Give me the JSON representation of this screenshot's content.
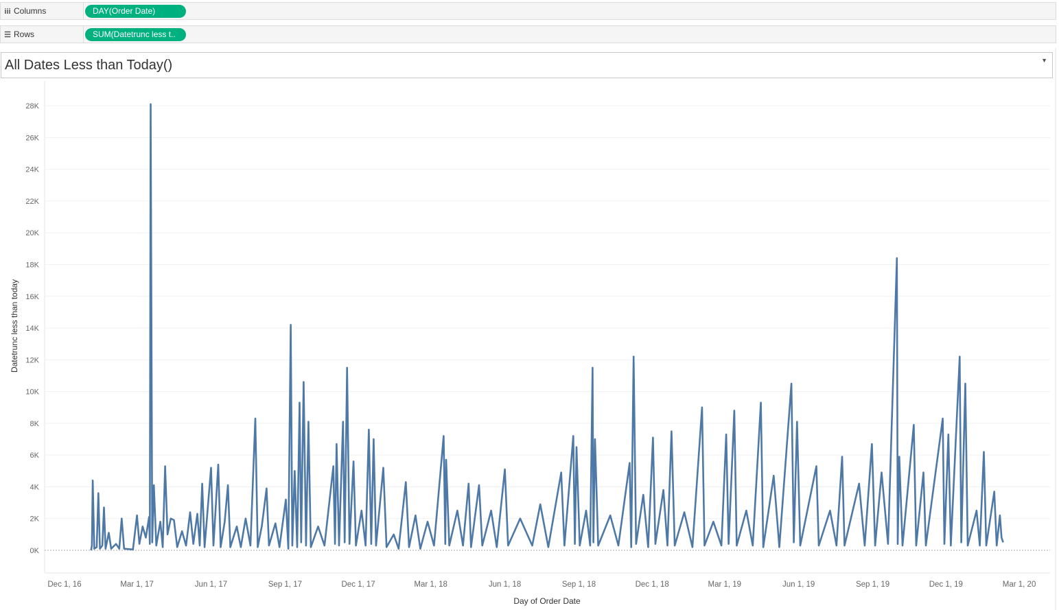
{
  "shelves": {
    "columns_label": "Columns",
    "columns_icon": "columns-icon",
    "columns_pill": "DAY(Order Date)",
    "rows_label": "Rows",
    "rows_icon": "rows-icon",
    "rows_pill": "SUM(Datetrunc less t.."
  },
  "sheet": {
    "title": "All Dates Less than Today()"
  },
  "colors": {
    "pill": "#00b180",
    "line": "#4e79a7"
  },
  "chart_data": {
    "type": "line",
    "title": "All Dates Less than Today()",
    "xlabel": "Day of Order Date",
    "ylabel": "Datetrunc less than today",
    "xlim": [
      "2016-11-06",
      "2020-03-20"
    ],
    "ylim": [
      -1500,
      29000
    ],
    "grid": true,
    "xticks": [
      {
        "d": "2016-12-01",
        "label": "Dec 1, 16"
      },
      {
        "d": "2017-03-01",
        "label": "Mar 1, 17"
      },
      {
        "d": "2017-06-01",
        "label": "Jun 1, 17"
      },
      {
        "d": "2017-09-01",
        "label": "Sep 1, 17"
      },
      {
        "d": "2017-12-01",
        "label": "Dec 1, 17"
      },
      {
        "d": "2018-03-01",
        "label": "Mar 1, 18"
      },
      {
        "d": "2018-06-01",
        "label": "Jun 1, 18"
      },
      {
        "d": "2018-09-01",
        "label": "Sep 1, 18"
      },
      {
        "d": "2018-12-01",
        "label": "Dec 1, 18"
      },
      {
        "d": "2019-03-01",
        "label": "Mar 1, 19"
      },
      {
        "d": "2019-06-01",
        "label": "Jun 1, 19"
      },
      {
        "d": "2019-09-01",
        "label": "Sep 1, 19"
      },
      {
        "d": "2019-12-01",
        "label": "Dec 1, 19"
      },
      {
        "d": "2020-03-01",
        "label": "Mar 1, 20"
      }
    ],
    "yticks": [
      {
        "v": 0,
        "label": "0K"
      },
      {
        "v": 2000,
        "label": "2K"
      },
      {
        "v": 4000,
        "label": "4K"
      },
      {
        "v": 6000,
        "label": "6K"
      },
      {
        "v": 8000,
        "label": "8K"
      },
      {
        "v": 10000,
        "label": "10K"
      },
      {
        "v": 12000,
        "label": "12K"
      },
      {
        "v": 14000,
        "label": "14K"
      },
      {
        "v": 16000,
        "label": "16K"
      },
      {
        "v": 18000,
        "label": "18K"
      },
      {
        "v": 20000,
        "label": "20K"
      },
      {
        "v": 22000,
        "label": "22K"
      },
      {
        "v": 24000,
        "label": "24K"
      },
      {
        "v": 26000,
        "label": "26K"
      },
      {
        "v": 28000,
        "label": "28K"
      }
    ],
    "points": [
      [
        "2017-01-03",
        0
      ],
      [
        "2017-01-04",
        300
      ],
      [
        "2017-01-05",
        4400
      ],
      [
        "2017-01-07",
        100
      ],
      [
        "2017-01-10",
        200
      ],
      [
        "2017-01-12",
        3600
      ],
      [
        "2017-01-14",
        100
      ],
      [
        "2017-01-17",
        300
      ],
      [
        "2017-01-19",
        2700
      ],
      [
        "2017-01-21",
        100
      ],
      [
        "2017-01-25",
        1100
      ],
      [
        "2017-01-28",
        100
      ],
      [
        "2017-02-03",
        400
      ],
      [
        "2017-02-07",
        100
      ],
      [
        "2017-02-10",
        2000
      ],
      [
        "2017-02-13",
        100
      ],
      [
        "2017-02-24",
        50
      ],
      [
        "2017-03-01",
        2200
      ],
      [
        "2017-03-04",
        400
      ],
      [
        "2017-03-08",
        1500
      ],
      [
        "2017-03-12",
        800
      ],
      [
        "2017-03-16",
        2100
      ],
      [
        "2017-03-17",
        400
      ],
      [
        "2017-03-18",
        28100
      ],
      [
        "2017-03-20",
        500
      ],
      [
        "2017-03-22",
        4100
      ],
      [
        "2017-03-25",
        300
      ],
      [
        "2017-03-30",
        1800
      ],
      [
        "2017-04-02",
        200
      ],
      [
        "2017-04-05",
        5300
      ],
      [
        "2017-04-08",
        1000
      ],
      [
        "2017-04-12",
        2000
      ],
      [
        "2017-04-16",
        1900
      ],
      [
        "2017-04-20",
        200
      ],
      [
        "2017-04-26",
        1200
      ],
      [
        "2017-05-01",
        300
      ],
      [
        "2017-05-06",
        2400
      ],
      [
        "2017-05-10",
        400
      ],
      [
        "2017-05-15",
        2300
      ],
      [
        "2017-05-18",
        300
      ],
      [
        "2017-05-21",
        4200
      ],
      [
        "2017-05-24",
        200
      ],
      [
        "2017-06-01",
        5200
      ],
      [
        "2017-06-04",
        300
      ],
      [
        "2017-06-10",
        5400
      ],
      [
        "2017-06-13",
        200
      ],
      [
        "2017-06-18",
        1800
      ],
      [
        "2017-06-22",
        4100
      ],
      [
        "2017-06-25",
        200
      ],
      [
        "2017-07-03",
        1500
      ],
      [
        "2017-07-08",
        200
      ],
      [
        "2017-07-14",
        2000
      ],
      [
        "2017-07-20",
        300
      ],
      [
        "2017-07-26",
        8300
      ],
      [
        "2017-07-29",
        200
      ],
      [
        "2017-08-03",
        1500
      ],
      [
        "2017-08-09",
        3900
      ],
      [
        "2017-08-12",
        300
      ],
      [
        "2017-08-20",
        1700
      ],
      [
        "2017-08-25",
        200
      ],
      [
        "2017-09-02",
        3200
      ],
      [
        "2017-09-05",
        100
      ],
      [
        "2017-09-08",
        14200
      ],
      [
        "2017-09-10",
        300
      ],
      [
        "2017-09-13",
        5000
      ],
      [
        "2017-09-16",
        200
      ],
      [
        "2017-09-19",
        9300
      ],
      [
        "2017-09-21",
        500
      ],
      [
        "2017-09-24",
        10600
      ],
      [
        "2017-09-27",
        300
      ],
      [
        "2017-09-30",
        8100
      ],
      [
        "2017-10-03",
        200
      ],
      [
        "2017-10-12",
        1500
      ],
      [
        "2017-10-20",
        300
      ],
      [
        "2017-10-31",
        5300
      ],
      [
        "2017-11-02",
        400
      ],
      [
        "2017-11-04",
        6700
      ],
      [
        "2017-11-07",
        300
      ],
      [
        "2017-11-12",
        8100
      ],
      [
        "2017-11-14",
        500
      ],
      [
        "2017-11-17",
        11500
      ],
      [
        "2017-11-20",
        400
      ],
      [
        "2017-11-25",
        5600
      ],
      [
        "2017-11-28",
        300
      ],
      [
        "2017-12-05",
        2500
      ],
      [
        "2017-12-10",
        300
      ],
      [
        "2017-12-14",
        7600
      ],
      [
        "2017-12-17",
        400
      ],
      [
        "2017-12-20",
        7000
      ],
      [
        "2017-12-23",
        300
      ],
      [
        "2018-01-01",
        5200
      ],
      [
        "2018-01-05",
        200
      ],
      [
        "2018-01-14",
        1000
      ],
      [
        "2018-01-20",
        100
      ],
      [
        "2018-01-29",
        4300
      ],
      [
        "2018-02-02",
        200
      ],
      [
        "2018-02-10",
        2200
      ],
      [
        "2018-02-16",
        100
      ],
      [
        "2018-02-25",
        1800
      ],
      [
        "2018-03-05",
        300
      ],
      [
        "2018-03-17",
        7200
      ],
      [
        "2018-03-19",
        400
      ],
      [
        "2018-03-20",
        5700
      ],
      [
        "2018-03-24",
        300
      ],
      [
        "2018-04-03",
        2500
      ],
      [
        "2018-04-10",
        300
      ],
      [
        "2018-04-17",
        4200
      ],
      [
        "2018-04-20",
        200
      ],
      [
        "2018-04-30",
        4100
      ],
      [
        "2018-05-04",
        300
      ],
      [
        "2018-05-15",
        2500
      ],
      [
        "2018-05-22",
        200
      ],
      [
        "2018-06-01",
        5100
      ],
      [
        "2018-06-05",
        300
      ],
      [
        "2018-06-20",
        2000
      ],
      [
        "2018-07-05",
        300
      ],
      [
        "2018-07-15",
        2900
      ],
      [
        "2018-07-25",
        200
      ],
      [
        "2018-08-10",
        4900
      ],
      [
        "2018-08-14",
        300
      ],
      [
        "2018-08-25",
        7200
      ],
      [
        "2018-08-27",
        400
      ],
      [
        "2018-08-29",
        6500
      ],
      [
        "2018-09-02",
        300
      ],
      [
        "2018-09-10",
        2500
      ],
      [
        "2018-09-15",
        300
      ],
      [
        "2018-09-18",
        11500
      ],
      [
        "2018-09-19",
        500
      ],
      [
        "2018-09-21",
        7000
      ],
      [
        "2018-09-25",
        300
      ],
      [
        "2018-10-10",
        2200
      ],
      [
        "2018-10-20",
        300
      ],
      [
        "2018-11-03",
        5500
      ],
      [
        "2018-11-05",
        200
      ],
      [
        "2018-11-08",
        12200
      ],
      [
        "2018-11-11",
        400
      ],
      [
        "2018-11-20",
        3500
      ],
      [
        "2018-11-26",
        200
      ],
      [
        "2018-12-02",
        7100
      ],
      [
        "2018-12-05",
        400
      ],
      [
        "2018-12-15",
        3800
      ],
      [
        "2018-12-20",
        300
      ],
      [
        "2018-12-25",
        7500
      ],
      [
        "2018-12-29",
        300
      ],
      [
        "2019-01-10",
        2400
      ],
      [
        "2019-01-20",
        200
      ],
      [
        "2019-02-01",
        9000
      ],
      [
        "2019-02-04",
        300
      ],
      [
        "2019-02-15",
        1800
      ],
      [
        "2019-02-25",
        300
      ],
      [
        "2019-03-03",
        7300
      ],
      [
        "2019-03-06",
        400
      ],
      [
        "2019-03-13",
        8800
      ],
      [
        "2019-03-16",
        300
      ],
      [
        "2019-03-28",
        2500
      ],
      [
        "2019-04-05",
        300
      ],
      [
        "2019-04-15",
        9300
      ],
      [
        "2019-04-18",
        200
      ],
      [
        "2019-05-01",
        4700
      ],
      [
        "2019-05-08",
        200
      ],
      [
        "2019-05-23",
        10500
      ],
      [
        "2019-05-26",
        500
      ],
      [
        "2019-05-30",
        8100
      ],
      [
        "2019-06-03",
        300
      ],
      [
        "2019-06-23",
        5300
      ],
      [
        "2019-06-26",
        300
      ],
      [
        "2019-07-10",
        2500
      ],
      [
        "2019-07-18",
        300
      ],
      [
        "2019-07-25",
        5900
      ],
      [
        "2019-07-28",
        300
      ],
      [
        "2019-08-15",
        4200
      ],
      [
        "2019-08-22",
        300
      ],
      [
        "2019-08-31",
        6700
      ],
      [
        "2019-09-04",
        300
      ],
      [
        "2019-09-12",
        4900
      ],
      [
        "2019-09-20",
        400
      ],
      [
        "2019-10-01",
        18400
      ],
      [
        "2019-10-02",
        400
      ],
      [
        "2019-10-04",
        5900
      ],
      [
        "2019-10-08",
        300
      ],
      [
        "2019-10-22",
        7900
      ],
      [
        "2019-10-25",
        300
      ],
      [
        "2019-11-03",
        4900
      ],
      [
        "2019-11-06",
        300
      ],
      [
        "2019-11-27",
        8300
      ],
      [
        "2019-11-29",
        400
      ],
      [
        "2019-12-04",
        7300
      ],
      [
        "2019-12-07",
        300
      ],
      [
        "2019-12-18",
        12200
      ],
      [
        "2019-12-20",
        500
      ],
      [
        "2019-12-25",
        10500
      ],
      [
        "2019-12-28",
        300
      ],
      [
        "2020-01-08",
        2500
      ],
      [
        "2020-01-12",
        300
      ],
      [
        "2020-01-17",
        6200
      ],
      [
        "2020-01-20",
        300
      ],
      [
        "2020-01-30",
        3700
      ],
      [
        "2020-02-02",
        300
      ],
      [
        "2020-02-06",
        2200
      ],
      [
        "2020-02-08",
        800
      ],
      [
        "2020-02-10",
        500
      ]
    ]
  }
}
